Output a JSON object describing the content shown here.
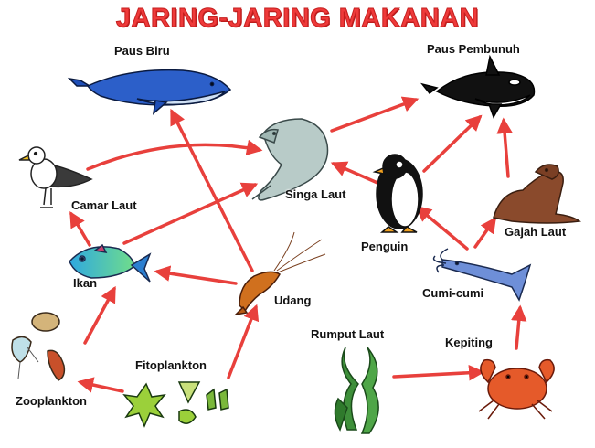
{
  "title": "JARING-JARING MAKANAN",
  "organisms": {
    "paus_biru": "Paus Biru",
    "paus_pembunuh": "Paus Pembunuh",
    "camar_laut": "Camar Laut",
    "singa_laut": "Singa Laut",
    "penguin": "Penguin",
    "gajah_laut": "Gajah Laut",
    "ikan": "Ikan",
    "udang": "Udang",
    "cumi_cumi": "Cumi-cumi",
    "rumput_laut": "Rumput Laut",
    "kepiting": "Kepiting",
    "fitoplankton": "Fitoplankton",
    "zooplankton": "Zooplankton"
  },
  "arrows": [
    {
      "from": "Fitoplankton",
      "to": "Zooplankton"
    },
    {
      "from": "Fitoplankton",
      "to": "Udang"
    },
    {
      "from": "Zooplankton",
      "to": "Ikan"
    },
    {
      "from": "Udang",
      "to": "Ikan"
    },
    {
      "from": "Udang",
      "to": "Paus Biru"
    },
    {
      "from": "Ikan",
      "to": "Camar Laut"
    },
    {
      "from": "Ikan",
      "to": "Singa Laut"
    },
    {
      "from": "Camar Laut",
      "to": "Singa Laut"
    },
    {
      "from": "Singa Laut",
      "to": "Paus Pembunuh"
    },
    {
      "from": "Penguin",
      "to": "Singa Laut"
    },
    {
      "from": "Penguin",
      "to": "Paus Pembunuh"
    },
    {
      "from": "Cumi-cumi",
      "to": "Penguin"
    },
    {
      "from": "Cumi-cumi",
      "to": "Gajah Laut"
    },
    {
      "from": "Gajah Laut",
      "to": "Paus Pembunuh"
    },
    {
      "from": "Kepiting",
      "to": "Cumi-cumi"
    },
    {
      "from": "Rumput Laut",
      "to": "Kepiting"
    }
  ],
  "colors": {
    "title": "#ee3a3a",
    "arrow": "#e8403c",
    "label": "#111111"
  }
}
